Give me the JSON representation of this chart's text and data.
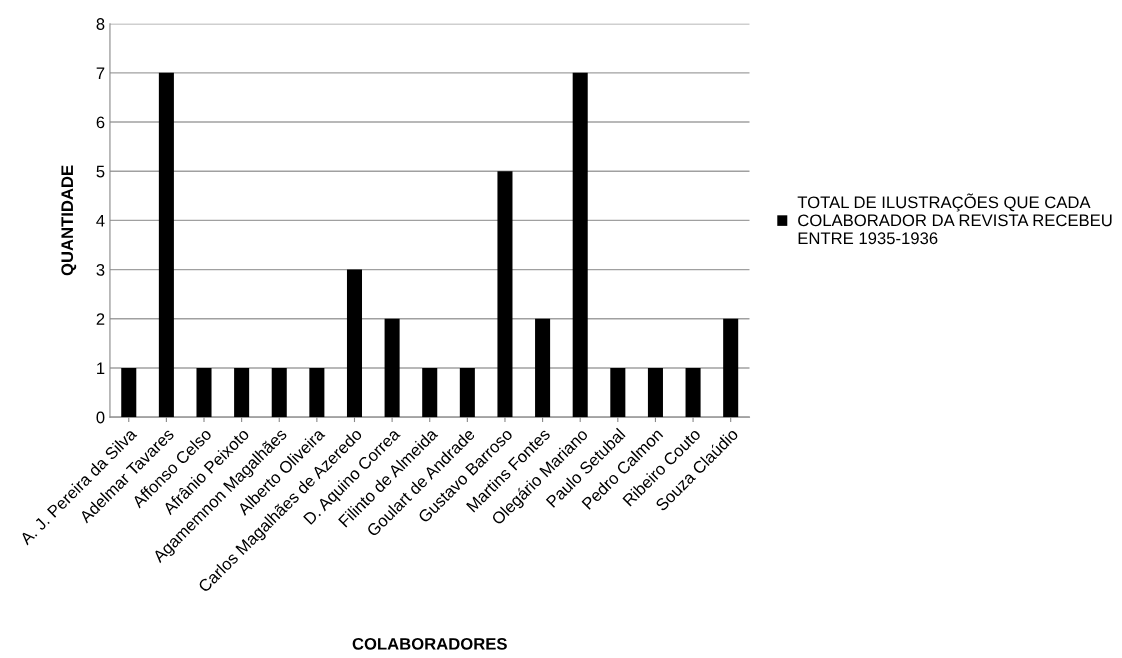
{
  "chart_data": {
    "type": "bar",
    "xlabel": "COLABORADORES",
    "ylabel": "QUANTIDADE",
    "categories": [
      "A. J. Pereira da Silva",
      "Adelmar Tavares",
      "Affonso Celso",
      "Afrânio Peixoto",
      "Agamemnon Magalhães",
      "Alberto Oliveira",
      "Carlos Magalhães de Azeredo",
      "D. Aquino Correa",
      "Filinto de Almeida",
      "Goulart de Andrade",
      "Gustavo Barroso",
      "Martins Fontes",
      "Olegário Mariano",
      "Paulo Setubal",
      "Pedro Calmon",
      "Ribeiro Couto",
      "Souza Claúdio"
    ],
    "series": [
      {
        "name": "TOTAL DE ILUSTRAÇÕES QUE CADA\nCOLABORADOR DA REVISTA RECEBEU\nENTRE 1935-1936",
        "color": "#000000",
        "values": [
          1,
          7,
          1,
          1,
          1,
          1,
          3,
          2,
          1,
          1,
          5,
          2,
          7,
          1,
          1,
          1,
          2
        ]
      }
    ],
    "ylim": [
      0,
      8
    ],
    "yticks": [
      0,
      1,
      2,
      3,
      4,
      5,
      6,
      7,
      8
    ],
    "grid": "y",
    "legend": "right"
  }
}
